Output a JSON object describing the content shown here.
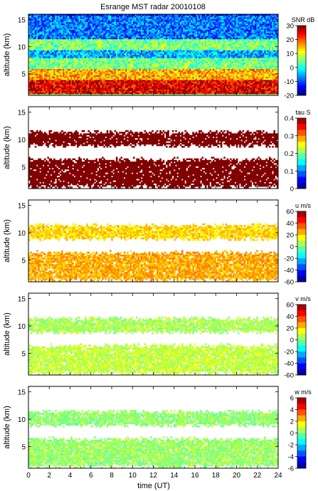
{
  "figure": {
    "title": "Esrange MST radar 20010108",
    "xlabel": "time (UT)",
    "x_ticks": [
      "0",
      "2",
      "4",
      "6",
      "8",
      "10",
      "12",
      "14",
      "16",
      "18",
      "20",
      "22",
      "24"
    ],
    "xlim": [
      0,
      24
    ]
  },
  "chart_data": [
    {
      "type": "heatmap",
      "quantity": "SNR",
      "colorbar_label": "SNR dB",
      "ylabel": "altitude (km)",
      "ylim": [
        1,
        16
      ],
      "y_ticks": [
        "5",
        "10",
        "15"
      ],
      "clim": [
        -20,
        30
      ],
      "colorbar_ticks": [
        "30",
        "20",
        "10",
        "0",
        "-10",
        "-20"
      ],
      "colormap": "jet",
      "description_values": {
        "bands_km": [
          [
            1.5,
            4.0,
            25
          ],
          [
            4.0,
            6.0,
            15
          ],
          [
            6.0,
            8.0,
            5
          ],
          [
            8.0,
            9.5,
            -5
          ],
          [
            9.5,
            11.5,
            5
          ],
          [
            11.5,
            16,
            -8
          ]
        ]
      }
    },
    {
      "type": "heatmap",
      "quantity": "tau",
      "colorbar_label": "tau S",
      "ylabel": "altitude (km)",
      "ylim": [
        1,
        16
      ],
      "y_ticks": [
        "5",
        "10",
        "15"
      ],
      "clim": [
        0,
        0.4
      ],
      "colorbar_ticks": [
        "0.4",
        "0.3",
        "0.2",
        "0.1",
        "0"
      ],
      "colormap": "jet",
      "bands_km": [
        [
          1.5,
          6.5,
          0.4
        ],
        [
          9.0,
          11.5,
          0.4
        ]
      ]
    },
    {
      "type": "heatmap",
      "quantity": "u",
      "colorbar_label": "u m/s",
      "ylabel": "altitude (km)",
      "ylim": [
        1,
        16
      ],
      "y_ticks": [
        "5",
        "10",
        "15"
      ],
      "clim": [
        -60,
        60
      ],
      "colorbar_ticks": [
        "60",
        "40",
        "20",
        "0",
        "-20",
        "-40",
        "-60"
      ],
      "colormap": "jet",
      "bands_km": [
        [
          1.5,
          6.5,
          25
        ],
        [
          9.0,
          11.5,
          20
        ]
      ]
    },
    {
      "type": "heatmap",
      "quantity": "v",
      "colorbar_label": "v m/s",
      "ylabel": "altitude (km)",
      "ylim": [
        1,
        16
      ],
      "y_ticks": [
        "5",
        "10",
        "15"
      ],
      "clim": [
        -60,
        60
      ],
      "colorbar_ticks": [
        "60",
        "40",
        "20",
        "0",
        "-20",
        "-40",
        "-60"
      ],
      "colormap": "jet",
      "bands_km": [
        [
          1.5,
          6.5,
          8
        ],
        [
          9.0,
          11.5,
          5
        ]
      ]
    },
    {
      "type": "heatmap",
      "quantity": "w",
      "colorbar_label": "w m/s",
      "ylabel": "altitude (km)",
      "ylim": [
        1,
        16
      ],
      "y_ticks": [
        "5",
        "10",
        "15"
      ],
      "clim": [
        -6,
        6
      ],
      "colorbar_ticks": [
        "6",
        "4",
        "2",
        "0",
        "-2",
        "-4",
        "-6"
      ],
      "colormap": "jet",
      "bands_km": [
        [
          1.5,
          6.5,
          0.3
        ],
        [
          9.0,
          11.5,
          0.2
        ]
      ]
    }
  ]
}
